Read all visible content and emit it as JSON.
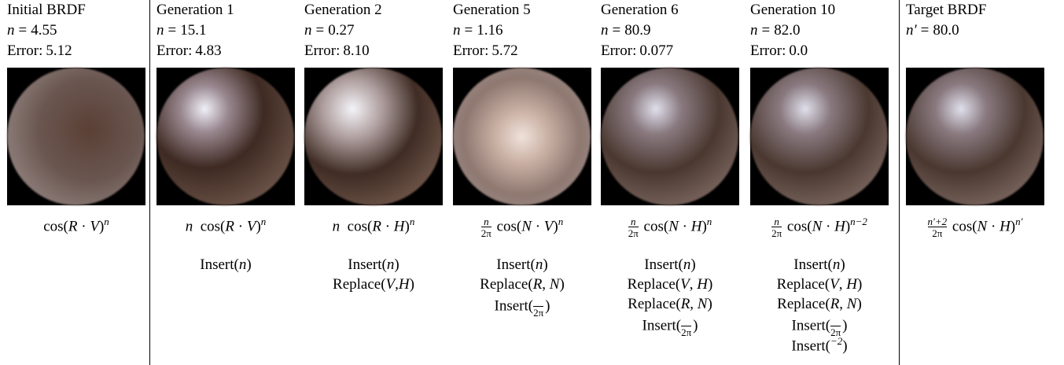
{
  "columns": [
    {
      "title": "Initial BRDF",
      "param": {
        "symbol": "n",
        "relation": "=",
        "value": "4.55"
      },
      "error": {
        "label": "Error:",
        "value": "5.12"
      },
      "formula": [
        "cos(",
        {
          "i": "R"
        },
        " · ",
        {
          "i": "V"
        },
        ")",
        {
          "sup": "n"
        }
      ],
      "ops": []
    },
    {
      "title": "Generation 1",
      "param": {
        "symbol": "n",
        "relation": "=",
        "value": "15.1"
      },
      "error": {
        "label": "Error:",
        "value": "4.83"
      },
      "formula": [
        {
          "i": "n"
        },
        "  cos(",
        {
          "i": "R"
        },
        " · ",
        {
          "i": "V"
        },
        ")",
        {
          "sup": "n"
        }
      ],
      "ops": [
        [
          "Insert(",
          {
            "i": "n"
          },
          ")"
        ]
      ]
    },
    {
      "title": "Generation 2",
      "param": {
        "symbol": "n",
        "relation": "=",
        "value": "0.27"
      },
      "error": {
        "label": "Error:",
        "value": "8.10"
      },
      "formula": [
        {
          "i": "n"
        },
        "  cos(",
        {
          "i": "R"
        },
        " · ",
        {
          "i": "H"
        },
        ")",
        {
          "sup": "n"
        }
      ],
      "ops": [
        [
          "Insert(",
          {
            "i": "n"
          },
          ")"
        ],
        [
          "Replace(",
          {
            "i": "V"
          },
          ",",
          {
            "i": "H"
          },
          ")"
        ]
      ]
    },
    {
      "title": "Generation 5",
      "param": {
        "symbol": "n",
        "relation": "=",
        "value": "1.16"
      },
      "error": {
        "label": "Error:",
        "value": "5.72"
      },
      "formula": [
        {
          "num": "n",
          "den": "2π"
        },
        " cos(",
        {
          "i": "N"
        },
        " · ",
        {
          "i": "V"
        },
        ")",
        {
          "sup": "n"
        }
      ],
      "ops": [
        [
          "Insert(",
          {
            "i": "n"
          },
          ")"
        ],
        [
          "Replace(",
          {
            "i": "R"
          },
          ", ",
          {
            "i": "N"
          },
          ")"
        ],
        [
          "Insert(",
          {
            "den": "2π"
          },
          ")"
        ]
      ]
    },
    {
      "title": "Generation 6",
      "param": {
        "symbol": "n",
        "relation": "=",
        "value": "80.9"
      },
      "error": {
        "label": "Error:",
        "value": "0.077"
      },
      "formula": [
        {
          "num": "n",
          "den": "2π"
        },
        " cos(",
        {
          "i": "N"
        },
        " · ",
        {
          "i": "H"
        },
        ")",
        {
          "sup": "n"
        }
      ],
      "ops": [
        [
          "Insert(",
          {
            "i": "n"
          },
          ")"
        ],
        [
          "Replace(",
          {
            "i": "V"
          },
          ", ",
          {
            "i": "H"
          },
          ")"
        ],
        [
          "Replace(",
          {
            "i": "R"
          },
          ", ",
          {
            "i": "N"
          },
          ")"
        ],
        [
          "Insert(",
          {
            "den": "2π"
          },
          ")"
        ]
      ]
    },
    {
      "title": "Generation 10",
      "param": {
        "symbol": "n",
        "relation": "=",
        "value": "82.0"
      },
      "error": {
        "label": "Error:",
        "value": "0.0"
      },
      "formula": [
        {
          "num": "n",
          "den": "2π"
        },
        " cos(",
        {
          "i": "N"
        },
        " · ",
        {
          "i": "H"
        },
        ")",
        {
          "sup": "n−2"
        }
      ],
      "ops": [
        [
          "Insert(",
          {
            "i": "n"
          },
          ")"
        ],
        [
          "Replace(",
          {
            "i": "V"
          },
          ", ",
          {
            "i": "H"
          },
          ")"
        ],
        [
          "Replace(",
          {
            "i": "R"
          },
          ", ",
          {
            "i": "N"
          },
          ")"
        ],
        [
          "Insert(",
          {
            "den": "2π"
          },
          ")"
        ],
        [
          "Insert(",
          {
            "sup": "−2"
          },
          ")"
        ]
      ]
    },
    {
      "title": "Target BRDF",
      "param": {
        "symbol": "n′",
        "relation": "=",
        "value": "80.0"
      },
      "formula": [
        {
          "num": "n′+2",
          "den": "2π"
        },
        " cos(",
        {
          "i": "N"
        },
        " · ",
        {
          "i": "H"
        },
        ")",
        {
          "sup": "n′"
        }
      ],
      "ops": []
    }
  ]
}
